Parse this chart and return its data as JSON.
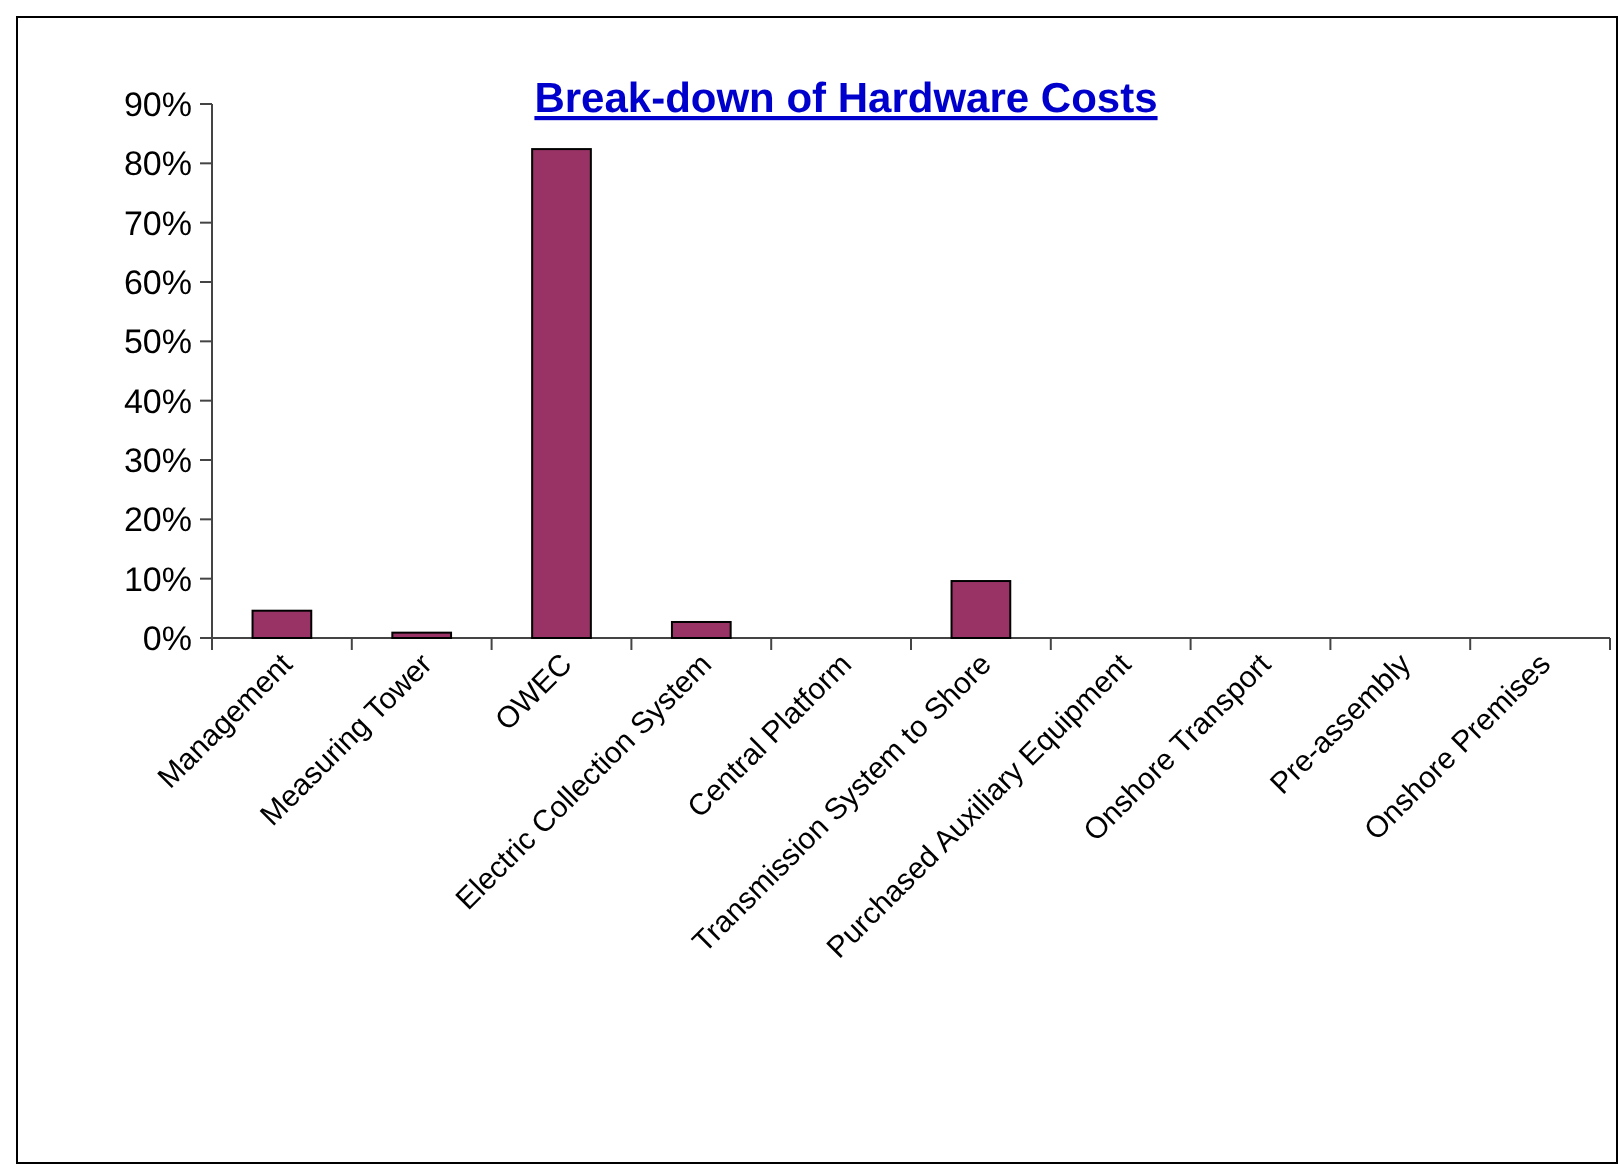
{
  "chart_data": {
    "type": "bar",
    "title": "Break-down of Hardware Costs",
    "categories": [
      "Management",
      "Measuring Tower",
      "OWEC",
      "Electric Collection System",
      "Central Platform",
      "Transmission System to Shore",
      "Purchased Auxiliary Equipment",
      "Onshore Transport",
      "Pre-assembly",
      "Onshore Premises"
    ],
    "values": [
      4.6,
      0.9,
      82.4,
      2.7,
      0,
      9.6,
      0,
      0,
      0,
      0
    ],
    "color": "#993366",
    "ylim": [
      0,
      90
    ],
    "yticks": [
      {
        "value": 0,
        "label": "0%"
      },
      {
        "value": 10,
        "label": "10%"
      },
      {
        "value": 20,
        "label": "20%"
      },
      {
        "value": 30,
        "label": "30%"
      },
      {
        "value": 40,
        "label": "40%"
      },
      {
        "value": 50,
        "label": "50%"
      },
      {
        "value": 60,
        "label": "60%"
      },
      {
        "value": 70,
        "label": "70%"
      },
      {
        "value": 80,
        "label": "80%"
      },
      {
        "value": 90,
        "label": "90%"
      }
    ],
    "grid": false
  }
}
